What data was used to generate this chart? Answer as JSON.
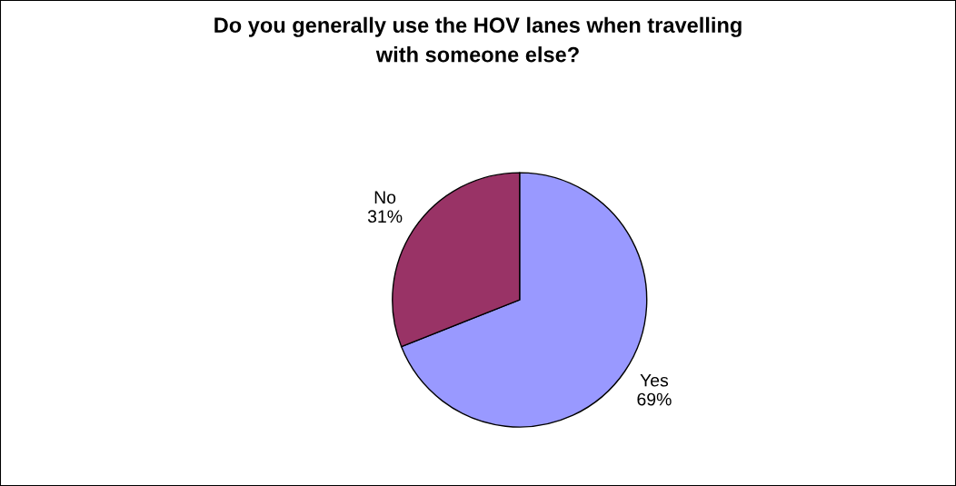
{
  "chart_data": {
    "type": "pie",
    "title": "Do you generally use the HOV lanes when travelling\nwith someone else?",
    "categories": [
      "Yes",
      "No"
    ],
    "values": [
      69,
      31
    ],
    "value_labels": [
      "69%",
      "31%"
    ],
    "colors": [
      "#9999ff",
      "#993366"
    ],
    "legend": false
  }
}
